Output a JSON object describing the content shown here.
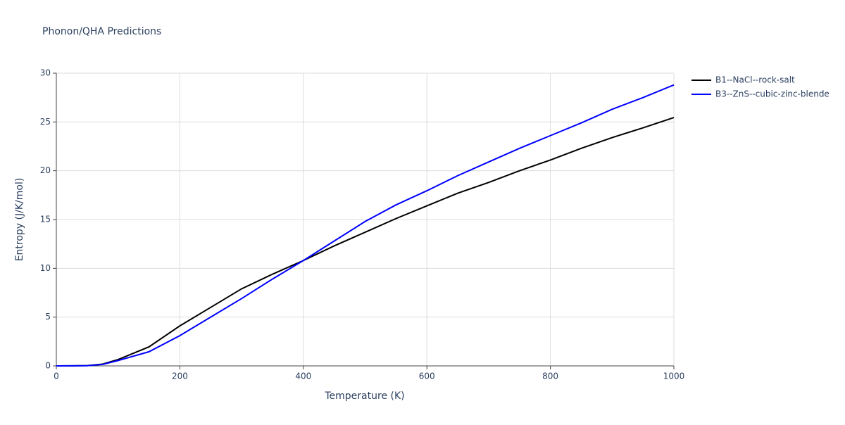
{
  "chart_data": {
    "type": "line",
    "title": "Phonon/QHA Predictions",
    "x_label": "Temperature (K)",
    "y_label": "Entropy (J/K/mol)",
    "x": [
      0,
      25,
      50,
      75,
      100,
      150,
      200,
      250,
      300,
      350,
      400,
      450,
      500,
      550,
      600,
      650,
      700,
      750,
      800,
      850,
      900,
      950,
      1000
    ],
    "series": [
      {
        "name": "B1--NaCl--rock-salt",
        "color": "#000000",
        "values": [
          0,
          0.01,
          0.03,
          0.18,
          0.65,
          1.95,
          4.1,
          6.0,
          7.9,
          9.4,
          10.8,
          12.3,
          13.7,
          15.1,
          16.4,
          17.7,
          18.8,
          20.0,
          21.1,
          22.3,
          23.4,
          24.4,
          25.45
        ]
      },
      {
        "name": "B3--ZnS--cubic-zinc-blende",
        "color": "#0000ff",
        "values": [
          0,
          0.01,
          0.03,
          0.15,
          0.55,
          1.45,
          3.1,
          5.0,
          6.9,
          8.9,
          10.8,
          12.8,
          14.8,
          16.5,
          17.95,
          19.5,
          20.9,
          22.3,
          23.6,
          24.9,
          26.3,
          27.5,
          28.8
        ]
      }
    ],
    "xlim": [
      0,
      1000
    ],
    "ylim": [
      0,
      30
    ],
    "xticks": [
      0,
      200,
      400,
      600,
      800,
      1000
    ],
    "yticks": [
      0,
      5,
      10,
      15,
      20,
      25,
      30
    ],
    "grid": true,
    "legend": "right"
  }
}
